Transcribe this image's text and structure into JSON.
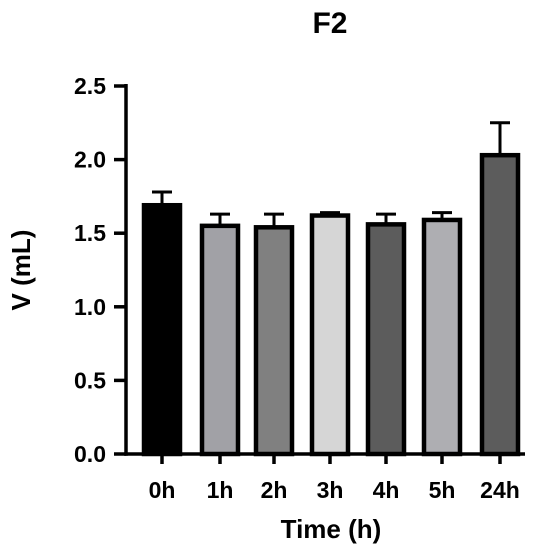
{
  "chart_data": {
    "type": "bar",
    "title": "F2",
    "xlabel": "Time (h)",
    "ylabel": "V (mL)",
    "ylim": [
      0,
      2.5
    ],
    "yticks": [
      "0.0",
      "0.5",
      "1.0",
      "1.5",
      "2.0",
      "2.5"
    ],
    "categories": [
      "0h",
      "1h",
      "2h",
      "3h",
      "4h",
      "5h",
      "24h"
    ],
    "values": [
      1.69,
      1.55,
      1.54,
      1.62,
      1.56,
      1.59,
      2.03
    ],
    "errors": [
      0.09,
      0.08,
      0.09,
      0.02,
      0.07,
      0.05,
      0.22
    ],
    "colors": [
      "#000000",
      "#a1a1a6",
      "#808080",
      "#d6d6d6",
      "#5c5c5c",
      "#aeaeb2",
      "#5c5c5c"
    ],
    "grid": false,
    "legend": "none"
  }
}
